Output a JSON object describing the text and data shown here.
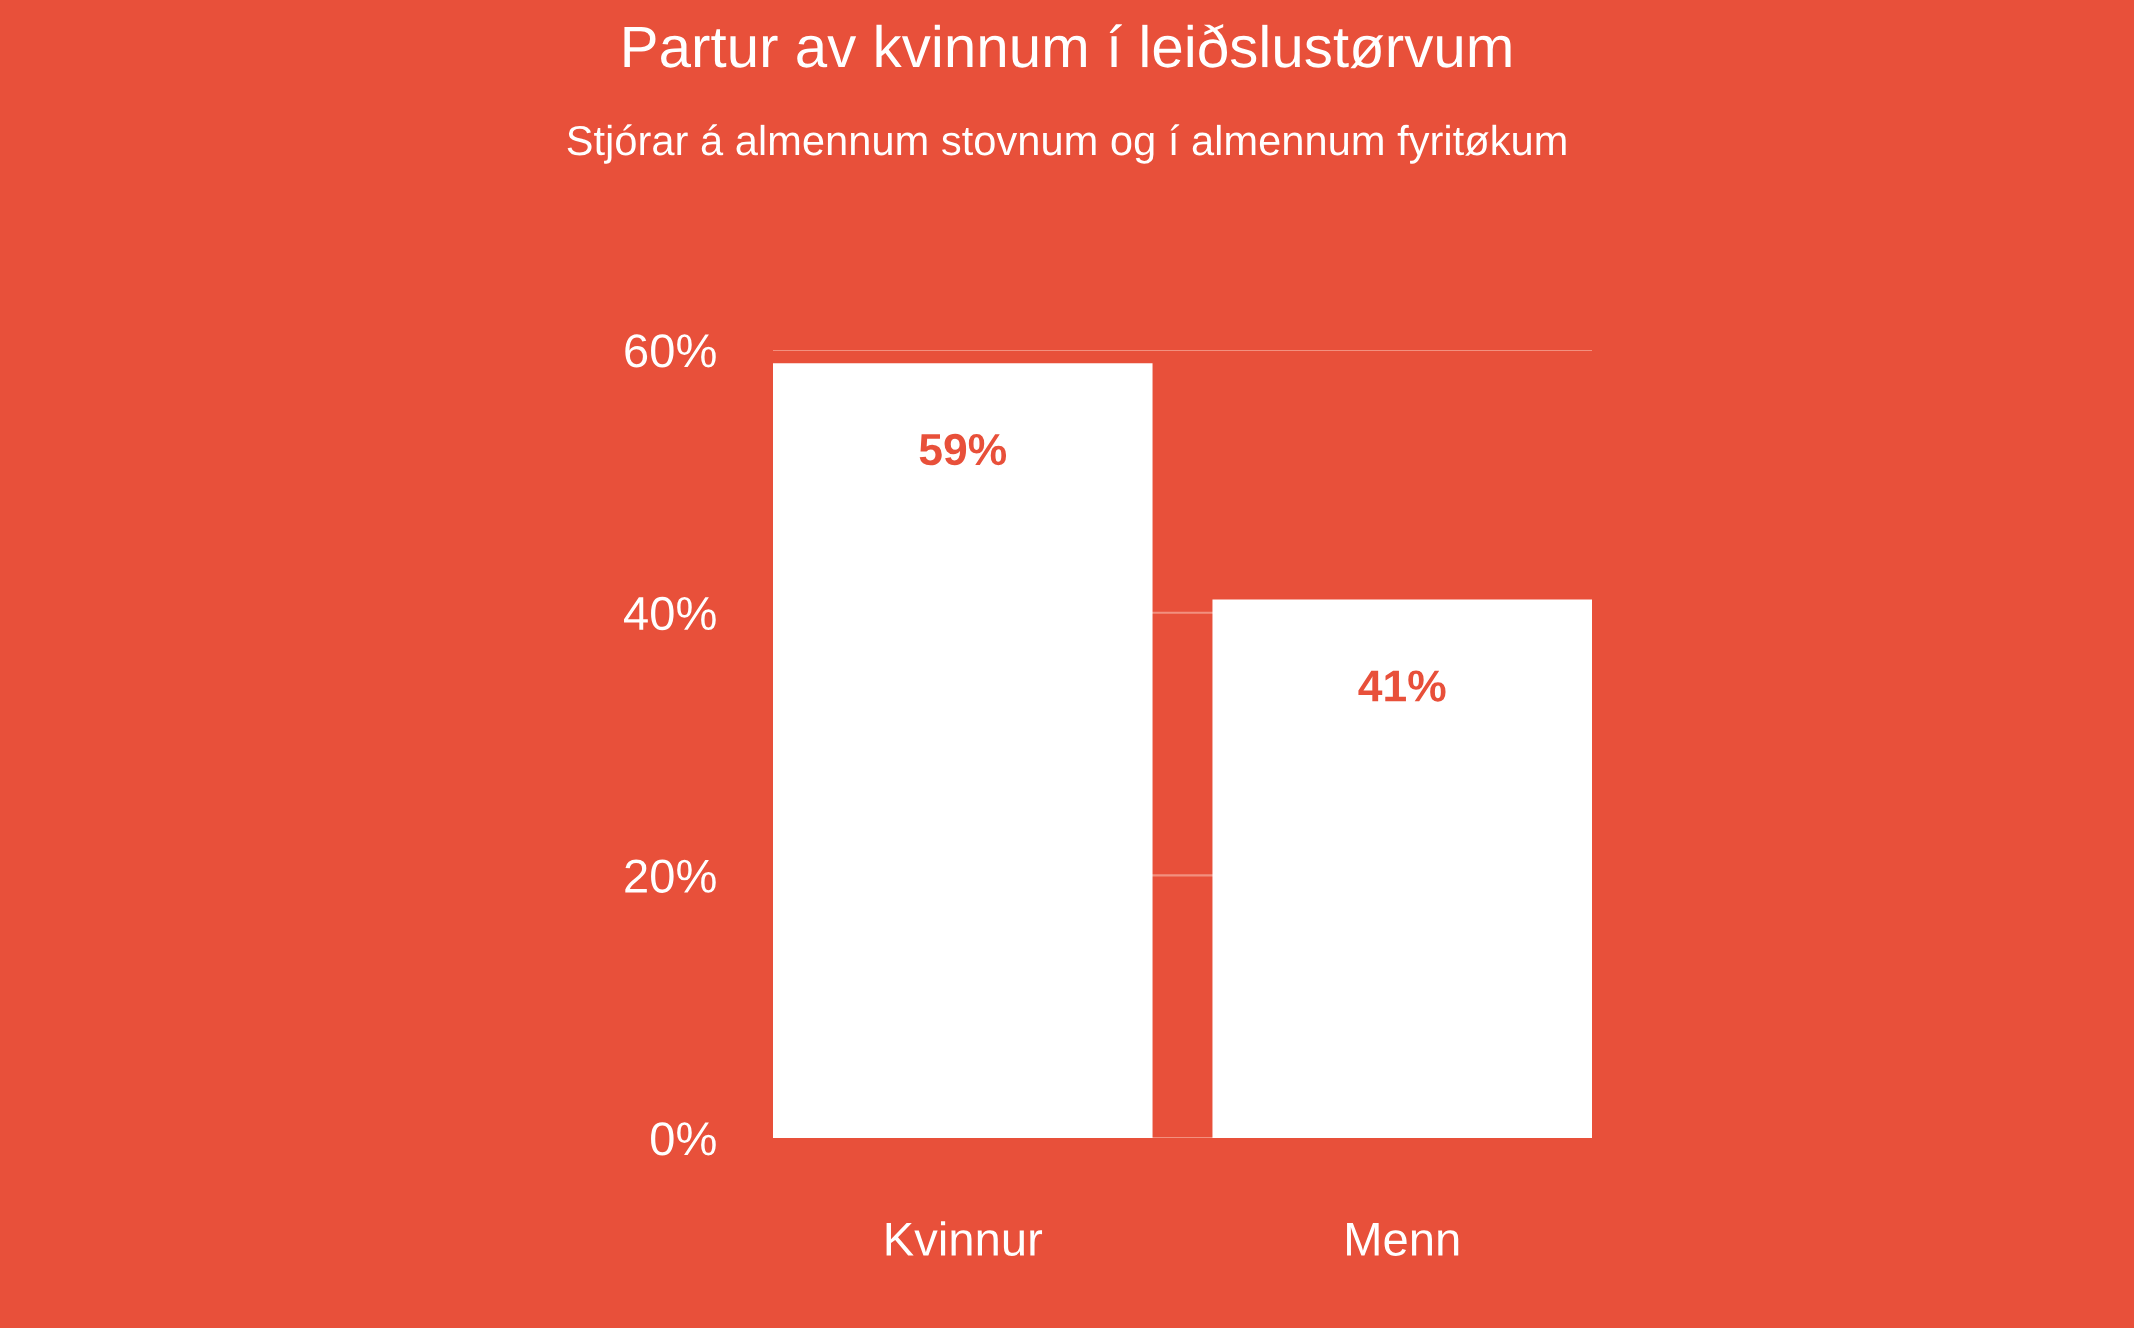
{
  "chart_data": {
    "type": "bar",
    "title": "Partur av kvinnum í leiðslustørvum",
    "subtitle": "Stjórar á almennum stovnum og í almennum fyritøkum",
    "categories": [
      "Kvinnur",
      "Menn"
    ],
    "values": [
      59,
      41
    ],
    "color": "#ffffff",
    "value_labels": [
      "59%",
      "41%"
    ],
    "ylim": [
      0,
      60
    ],
    "yticks": [
      {
        "value": 0,
        "label": "0%"
      },
      {
        "value": 20,
        "label": "20%"
      },
      {
        "value": 40,
        "label": "40%"
      },
      {
        "value": 60,
        "label": "60%"
      }
    ],
    "grid": "y"
  }
}
